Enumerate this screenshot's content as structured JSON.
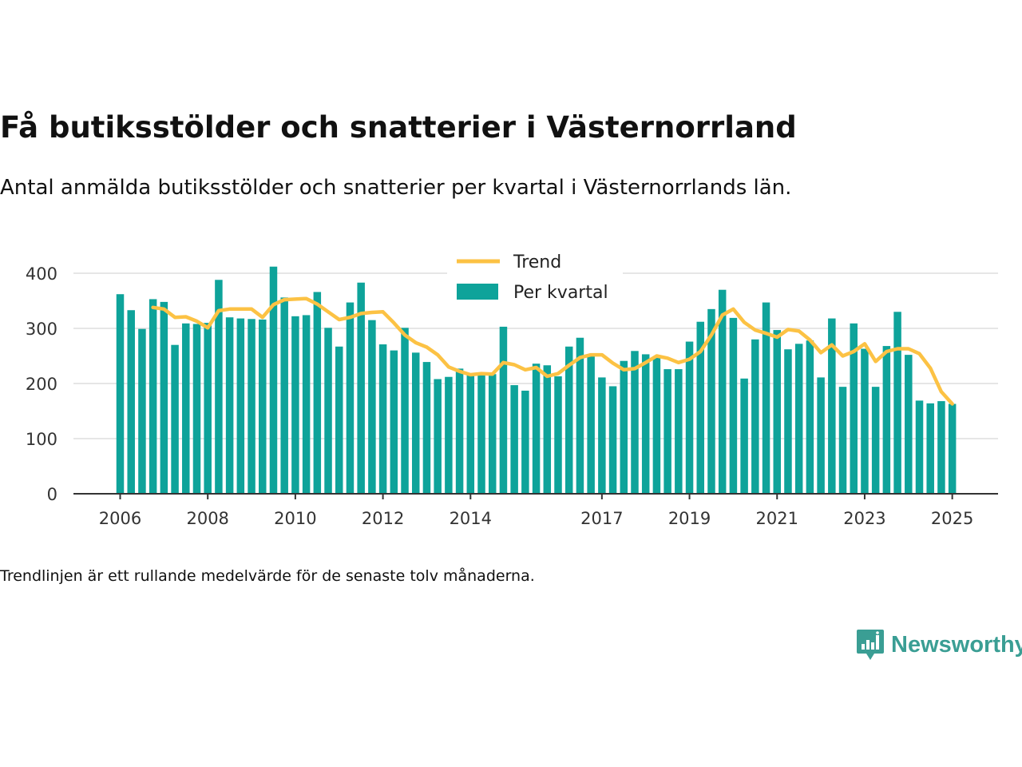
{
  "title": "Få butiksstölder och snatterier i Västernorrland",
  "subtitle": "Antal anmälda butiksstölder och snatterier per kvartal i Västernorrlands län.",
  "footnote": "Trendlinjen är ett rullande medelvärde för de senaste tolv månaderna.",
  "brand": {
    "name": "Newsworthy",
    "color": "#3a9e94",
    "icon": "newsworthy-logo-icon"
  },
  "colors": {
    "bars": "#0ea39a",
    "trend": "#fcc244",
    "grid": "#dddddd",
    "axis": "#333333"
  },
  "chart_data": {
    "type": "bar",
    "x_start": 2006.0,
    "x_step": 0.25,
    "xlim": [
      2005.6,
      2026.0
    ],
    "ylim": [
      0,
      420
    ],
    "y_ticks": [
      0,
      100,
      200,
      300,
      400
    ],
    "x_ticks": [
      2006,
      2008,
      2010,
      2012,
      2014,
      2017,
      2019,
      2021,
      2023,
      2025
    ],
    "grid": true,
    "legend_position": "top-center",
    "series": [
      {
        "name": "Per kvartal",
        "type": "bar",
        "values": [
          362,
          333,
          299,
          353,
          348,
          270,
          309,
          308,
          310,
          388,
          320,
          318,
          317,
          316,
          412,
          356,
          322,
          324,
          366,
          301,
          267,
          347,
          383,
          315,
          271,
          260,
          301,
          256,
          239,
          208,
          212,
          227,
          218,
          217,
          217,
          303,
          197,
          187,
          236,
          233,
          213,
          267,
          283,
          252,
          211,
          195,
          241,
          259,
          253,
          248,
          226,
          226,
          276,
          312,
          335,
          370,
          319,
          209,
          280,
          347,
          297,
          262,
          272,
          278,
          211,
          318,
          194,
          309,
          263,
          194,
          268,
          330,
          252,
          169,
          164,
          168,
          163
        ]
      },
      {
        "name": "Trend",
        "type": "line",
        "values": [
          null,
          null,
          null,
          338,
          335,
          320,
          321,
          313,
          301,
          332,
          335,
          335,
          335,
          320,
          343,
          352,
          353,
          354,
          344,
          330,
          316,
          320,
          327,
          329,
          330,
          310,
          288,
          274,
          266,
          252,
          230,
          222,
          216,
          218,
          217,
          238,
          234,
          225,
          229,
          213,
          218,
          233,
          247,
          252,
          252,
          237,
          225,
          227,
          238,
          250,
          246,
          238,
          244,
          258,
          288,
          324,
          335,
          311,
          297,
          291,
          284,
          298,
          295,
          279,
          256,
          270,
          250,
          258,
          272,
          240,
          258,
          263,
          263,
          254,
          228,
          185,
          163
        ]
      }
    ]
  }
}
